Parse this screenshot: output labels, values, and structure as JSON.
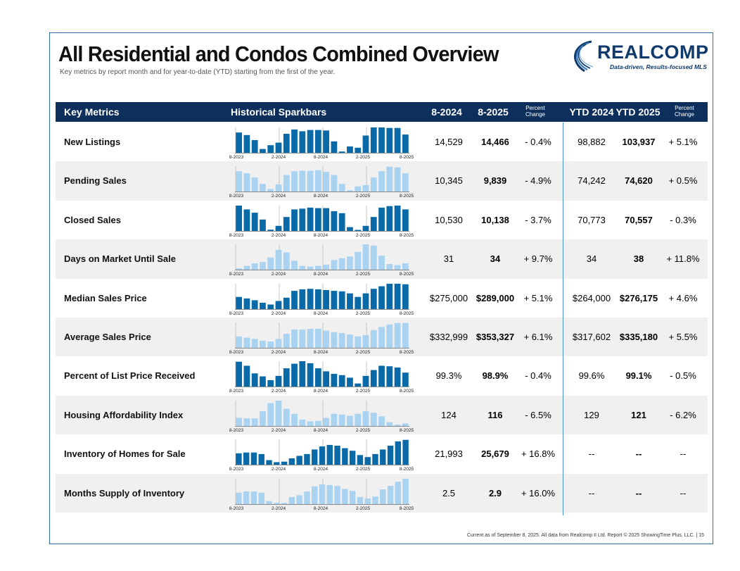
{
  "title": "All Residential and Condos Combined Overview",
  "subtitle": "Key metrics by report month and for year-to-date (YTD) starting from the first of the year.",
  "logo": {
    "word": "REALCOMP",
    "tagline": "Data-driven, Results-focused MLS",
    "color": "#0f3a6b"
  },
  "header": {
    "key_metrics": "Key Metrics",
    "sparkbars": "Historical Sparkbars",
    "col1": "8-2024",
    "col2": "8-2025",
    "col3": "Percent Change",
    "col4": "YTD 2024",
    "col5": "YTD 2025",
    "col6": "Percent Change"
  },
  "colors": {
    "dark_bar": "#0a6aa8",
    "light_bar": "#a9d3f0",
    "header_bg": "#0c2f5c"
  },
  "axis_labels": [
    "8-2023",
    "2-2024",
    "8-2024",
    "2-2025",
    "8-2025"
  ],
  "rows": [
    {
      "label": "New Listings",
      "v1": "14,529",
      "v2": "14,466",
      "pct": "- 0.4%",
      "ytd1": "98,882",
      "ytd2": "103,937",
      "ytdpct": "+ 5.1%",
      "style": "dark",
      "spark": [
        0.8,
        0.7,
        0.5,
        0.15,
        0.3,
        0.4,
        0.75,
        0.92,
        0.85,
        0.9,
        0.9,
        0.88,
        0.45,
        0.05,
        0.25,
        0.2,
        0.68,
        1.0,
        1.0,
        0.98,
        0.98,
        0.72
      ]
    },
    {
      "label": "Pending Sales",
      "v1": "10,345",
      "v2": "9,839",
      "pct": "- 4.9%",
      "ytd1": "74,242",
      "ytd2": "74,620",
      "ytdpct": "+ 0.5%",
      "style": "light",
      "spark": [
        0.8,
        0.72,
        0.55,
        0.3,
        0.1,
        0.28,
        0.65,
        0.8,
        0.82,
        0.82,
        0.84,
        0.78,
        0.65,
        0.3,
        0.05,
        0.2,
        0.25,
        0.55,
        0.8,
        0.98,
        0.95,
        0.72
      ]
    },
    {
      "label": "Closed Sales",
      "v1": "10,530",
      "v2": "10,138",
      "pct": "- 3.7%",
      "ytd1": "70,773",
      "ytd2": "70,557",
      "ytdpct": "- 0.3%",
      "style": "dark",
      "spark": [
        1.0,
        0.85,
        0.72,
        0.45,
        0.05,
        0.2,
        0.55,
        0.85,
        0.88,
        0.92,
        0.9,
        0.9,
        0.78,
        0.7,
        0.15,
        0.02,
        0.2,
        0.55,
        0.92,
        0.98,
        1.0,
        0.85
      ]
    },
    {
      "label": "Days on Market Until Sale",
      "v1": "31",
      "v2": "34",
      "pct": "+ 9.7%",
      "ytd1": "34",
      "ytd2": "38",
      "ytdpct": "+ 11.8%",
      "style": "light",
      "spark": [
        0.05,
        0.15,
        0.25,
        0.3,
        0.48,
        0.78,
        0.68,
        0.35,
        0.15,
        0.12,
        0.15,
        0.2,
        0.38,
        0.45,
        0.52,
        0.7,
        1.0,
        0.95,
        0.55,
        0.22,
        0.18,
        0.25
      ]
    },
    {
      "label": "Median Sales Price",
      "v1": "$275,000",
      "v2": "$289,000",
      "pct": "+ 5.1%",
      "ytd1": "$264,000",
      "ytd2": "$276,175",
      "ytdpct": "+ 4.6%",
      "style": "dark",
      "spark": [
        0.48,
        0.42,
        0.35,
        0.25,
        0.18,
        0.32,
        0.45,
        0.72,
        0.78,
        0.8,
        0.78,
        0.75,
        0.72,
        0.7,
        0.62,
        0.48,
        0.62,
        0.8,
        0.9,
        1.0,
        1.0,
        0.98
      ]
    },
    {
      "label": "Average Sales Price",
      "v1": "$332,999",
      "v2": "$353,327",
      "pct": "+ 6.1%",
      "ytd1": "$317,602",
      "ytd2": "$335,180",
      "ytdpct": "+ 5.5%",
      "style": "light",
      "spark": [
        0.45,
        0.4,
        0.35,
        0.28,
        0.25,
        0.35,
        0.55,
        0.72,
        0.72,
        0.75,
        0.75,
        0.68,
        0.62,
        0.58,
        0.52,
        0.45,
        0.5,
        0.7,
        0.82,
        0.92,
        0.98,
        0.98
      ]
    },
    {
      "label": "Percent of List Price Received",
      "v1": "99.3%",
      "v2": "98.9%",
      "pct": "- 0.4%",
      "ytd1": "99.6%",
      "ytd2": "99.1%",
      "ytdpct": "- 0.5%",
      "style": "dark",
      "spark": [
        0.98,
        0.82,
        0.52,
        0.4,
        0.25,
        0.42,
        0.72,
        0.9,
        1.0,
        0.92,
        0.72,
        0.6,
        0.5,
        0.45,
        0.35,
        0.12,
        0.42,
        0.65,
        0.82,
        0.8,
        0.75,
        0.55
      ]
    },
    {
      "label": "Housing Affordability Index",
      "v1": "124",
      "v2": "116",
      "pct": "- 6.5%",
      "ytd1": "129",
      "ytd2": "121",
      "ytdpct": "- 6.2%",
      "style": "light",
      "spark": [
        0.32,
        0.3,
        0.3,
        0.58,
        0.9,
        1.0,
        0.68,
        0.48,
        0.25,
        0.18,
        0.2,
        0.32,
        0.48,
        0.45,
        0.4,
        0.48,
        0.58,
        0.52,
        0.38,
        0.15,
        0.05,
        0.1
      ]
    },
    {
      "label": "Inventory of Homes for Sale",
      "v1": "21,993",
      "v2": "25,679",
      "pct": "+ 16.8%",
      "ytd1": "--",
      "ytd2": "--",
      "ytdpct": "--",
      "style": "dark",
      "spark": [
        0.45,
        0.48,
        0.48,
        0.42,
        0.18,
        0.1,
        0.12,
        0.25,
        0.35,
        0.42,
        0.6,
        0.72,
        0.78,
        0.75,
        0.65,
        0.55,
        0.38,
        0.3,
        0.42,
        0.6,
        0.75,
        0.92,
        0.98
      ]
    },
    {
      "label": "Months Supply of Inventory",
      "v1": "2.5",
      "v2": "2.9",
      "pct": "+ 16.0%",
      "ytd1": "--",
      "ytd2": "--",
      "ytdpct": "--",
      "style": "light",
      "spark": [
        0.45,
        0.5,
        0.5,
        0.45,
        0.12,
        0.05,
        0.05,
        0.28,
        0.35,
        0.5,
        0.7,
        0.78,
        0.75,
        0.72,
        0.6,
        0.52,
        0.28,
        0.22,
        0.3,
        0.58,
        0.72,
        0.88,
        1.0
      ]
    }
  ],
  "footer": "Current as of September 8, 2025. All data from Realcomp II Ltd. Report © 2025 ShowingTime Plus, LLC.  |  15"
}
